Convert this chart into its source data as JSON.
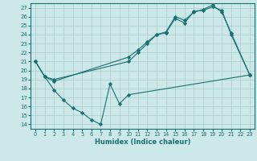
{
  "xlabel": "Humidex (Indice chaleur)",
  "bg_color": "#cce8e8",
  "grid_color": "#aacccc",
  "line_color": "#1a7070",
  "xlim": [
    -0.5,
    23.5
  ],
  "ylim": [
    13.5,
    27.5
  ],
  "xticks": [
    0,
    1,
    2,
    3,
    4,
    5,
    6,
    7,
    8,
    9,
    10,
    11,
    12,
    13,
    14,
    15,
    16,
    17,
    18,
    19,
    20,
    21,
    22,
    23
  ],
  "yticks": [
    14,
    15,
    16,
    17,
    18,
    19,
    20,
    21,
    22,
    23,
    24,
    25,
    26,
    27
  ],
  "line1_x": [
    0,
    1,
    2,
    10,
    11,
    12,
    13,
    14,
    15,
    16,
    17,
    18,
    19,
    20,
    21,
    23
  ],
  "line1_y": [
    21.0,
    19.3,
    18.8,
    21.5,
    22.3,
    23.2,
    24.0,
    24.2,
    25.8,
    25.3,
    26.6,
    26.7,
    27.1,
    26.7,
    24.0,
    19.5
  ],
  "line2_x": [
    0,
    1,
    2,
    10,
    11,
    12,
    13,
    14,
    15,
    16,
    17,
    18,
    19,
    20,
    21,
    23
  ],
  "line2_y": [
    21.0,
    19.3,
    19.0,
    21.0,
    22.0,
    23.0,
    24.0,
    24.3,
    26.0,
    25.6,
    26.5,
    26.8,
    27.3,
    26.5,
    24.2,
    19.5
  ],
  "line3_x": [
    0,
    1,
    2,
    3,
    4,
    5,
    6,
    7,
    8,
    9,
    10,
    23
  ],
  "line3_y": [
    21.0,
    19.3,
    17.8,
    16.7,
    15.8,
    15.3,
    14.5,
    14.0,
    18.5,
    16.3,
    17.3,
    19.5
  ]
}
